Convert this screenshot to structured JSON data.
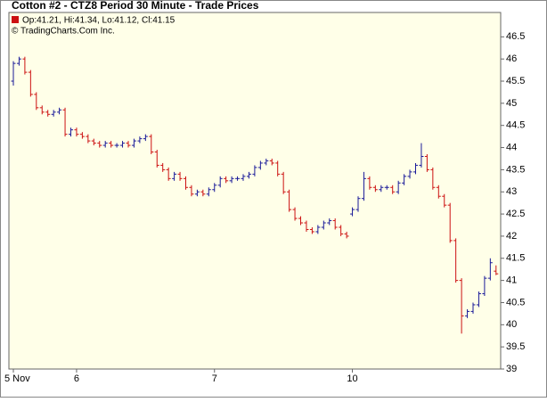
{
  "chart_data": {
    "type": "ohlc",
    "title": "Cotton #2 - CTZ8 Period 30 Minute - Trade Prices",
    "info": "Op:41.21, Hi:41.34, Lo:41.12, Cl:41.15",
    "copyright": "© TradingCharts.Com Inc.",
    "up_color": "#1a1a99",
    "down_color": "#cc1111",
    "categories": [
      "5 Nov",
      null,
      null,
      null,
      null,
      null,
      null,
      null,
      null,
      null,
      null,
      "6",
      null,
      null,
      null,
      null,
      null,
      null,
      null,
      null,
      null,
      null,
      null,
      null,
      null,
      null,
      null,
      null,
      null,
      null,
      null,
      null,
      null,
      null,
      null,
      "7",
      null,
      null,
      null,
      null,
      null,
      null,
      null,
      null,
      null,
      null,
      null,
      null,
      null,
      null,
      null,
      null,
      null,
      null,
      null,
      null,
      null,
      null,
      null,
      "10",
      null,
      null,
      null,
      null,
      null,
      null,
      null,
      null,
      null,
      null,
      null,
      null,
      null,
      null,
      null,
      null,
      null,
      null,
      null,
      null,
      null,
      null,
      null,
      null,
      null
    ],
    "open": [
      45.5,
      45.9,
      46.0,
      45.7,
      45.2,
      44.9,
      44.8,
      44.75,
      44.8,
      44.85,
      44.3,
      44.4,
      44.3,
      44.25,
      44.15,
      44.1,
      44.05,
      44.1,
      44.05,
      44.05,
      44.1,
      44.05,
      44.15,
      44.2,
      44.25,
      43.9,
      43.6,
      43.5,
      43.3,
      43.4,
      43.3,
      43.1,
      42.95,
      43.0,
      42.95,
      43.05,
      43.15,
      43.3,
      43.25,
      43.3,
      43.3,
      43.35,
      43.4,
      43.55,
      43.65,
      43.7,
      43.65,
      43.4,
      43.0,
      42.6,
      42.4,
      42.3,
      42.15,
      42.1,
      42.2,
      42.3,
      42.35,
      42.2,
      42.05,
      42.5,
      42.6,
      42.85,
      43.3,
      43.1,
      43.05,
      43.1,
      43.1,
      43.0,
      43.2,
      43.35,
      43.45,
      43.6,
      43.8,
      43.5,
      43.1,
      42.9,
      42.7,
      41.9,
      41.0,
      40.2,
      40.3,
      40.45,
      40.7,
      41.05,
      41.21
    ],
    "high": [
      45.95,
      46.05,
      46.05,
      45.75,
      45.25,
      44.95,
      44.85,
      44.85,
      44.9,
      44.9,
      44.45,
      44.45,
      44.35,
      44.3,
      44.2,
      44.15,
      44.15,
      44.15,
      44.1,
      44.15,
      44.15,
      44.2,
      44.25,
      44.3,
      44.3,
      43.95,
      43.65,
      43.55,
      43.45,
      43.45,
      43.35,
      43.15,
      43.05,
      43.05,
      43.1,
      43.2,
      43.35,
      43.35,
      43.35,
      43.35,
      43.4,
      43.45,
      43.6,
      43.7,
      43.75,
      43.75,
      43.7,
      43.45,
      43.05,
      42.65,
      42.45,
      42.35,
      42.2,
      42.25,
      42.35,
      42.4,
      42.4,
      42.25,
      42.1,
      42.65,
      42.9,
      43.45,
      43.35,
      43.15,
      43.15,
      43.15,
      43.15,
      43.25,
      43.4,
      43.5,
      43.65,
      44.1,
      43.85,
      43.55,
      43.15,
      42.95,
      42.75,
      41.95,
      41.05,
      40.35,
      40.5,
      40.75,
      41.1,
      41.5,
      41.34
    ],
    "low": [
      45.4,
      45.85,
      45.65,
      45.15,
      44.85,
      44.75,
      44.7,
      44.7,
      44.75,
      44.25,
      44.25,
      44.25,
      44.2,
      44.1,
      44.05,
      44.0,
      44.0,
      44.0,
      44.0,
      44.0,
      44.0,
      44.0,
      44.1,
      44.15,
      43.85,
      43.55,
      43.45,
      43.25,
      43.25,
      43.25,
      43.05,
      42.9,
      42.9,
      42.9,
      42.9,
      43.0,
      43.1,
      43.2,
      43.2,
      43.25,
      43.25,
      43.3,
      43.35,
      43.5,
      43.6,
      43.6,
      43.35,
      42.95,
      42.55,
      42.35,
      42.25,
      42.1,
      42.05,
      42.05,
      42.15,
      42.25,
      42.15,
      42.0,
      41.95,
      42.45,
      42.55,
      42.8,
      43.05,
      43.0,
      43.0,
      43.05,
      42.95,
      42.95,
      43.15,
      43.3,
      43.4,
      43.55,
      43.45,
      43.05,
      42.85,
      42.65,
      41.85,
      40.95,
      39.8,
      40.15,
      40.25,
      40.4,
      40.65,
      41.0,
      41.12
    ],
    "close": [
      45.9,
      46.0,
      45.7,
      45.2,
      44.9,
      44.8,
      44.75,
      44.8,
      44.85,
      44.3,
      44.4,
      44.3,
      44.25,
      44.15,
      44.1,
      44.05,
      44.1,
      44.05,
      44.05,
      44.1,
      44.05,
      44.15,
      44.2,
      44.25,
      43.9,
      43.6,
      43.5,
      43.3,
      43.4,
      43.3,
      43.1,
      42.95,
      43.0,
      42.95,
      43.05,
      43.15,
      43.3,
      43.25,
      43.3,
      43.3,
      43.35,
      43.4,
      43.55,
      43.65,
      43.7,
      43.65,
      43.4,
      43.0,
      42.6,
      42.4,
      42.3,
      42.15,
      42.1,
      42.2,
      42.3,
      42.35,
      42.2,
      42.05,
      42.0,
      42.6,
      42.85,
      43.3,
      43.1,
      43.05,
      43.1,
      43.1,
      43.0,
      43.2,
      43.35,
      43.45,
      43.6,
      43.8,
      43.5,
      43.1,
      42.9,
      42.7,
      41.9,
      41.0,
      40.2,
      40.3,
      40.45,
      40.7,
      41.05,
      41.4,
      41.15
    ],
    "ylim": [
      39,
      47.05
    ],
    "yticks": [
      39,
      39.5,
      40,
      40.5,
      41,
      41.5,
      42,
      42.5,
      43,
      43.5,
      44,
      44.5,
      45,
      45.5,
      46,
      46.5
    ]
  }
}
